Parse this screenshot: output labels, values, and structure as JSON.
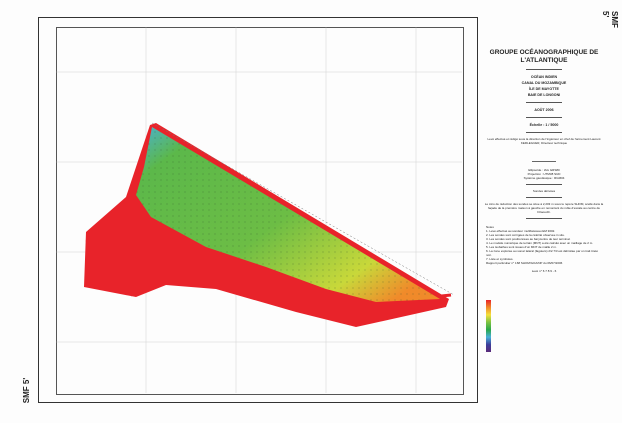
{
  "sheet_id": "SMF 5'",
  "title_block": {
    "organization": "GROUPE OCÉANOGRAPHIQUE DE L'ATLANTIQUE",
    "region_lines": [
      "OCÉAN INDIEN",
      "CANAL DU MOZAMBIQUE",
      "ÎLE DE MAYOTTE",
      "BAIE DE LONGONI"
    ],
    "date": "AOÛT 2006",
    "scale": "Échelle : 1 / 5000",
    "credit": "Levé effectué et rédigé sous la direction de l'ingénieur en chef de l'armement Laurent KERLEGUER, Directeur technique",
    "geodesy": [
      "Ellipsoïde : IAG GRS80",
      "Projection : UTM38 SUD",
      "Système géodésique : RGM04"
    ],
    "soundings": "Sondes dérivées",
    "datum_note": "Le zéro de réduction des sondes se situe à 2,203 m sous le repère SHOM, scellé dans la façade de la première maison à gauche en remontant du môle d'escale au centre de Dzaoudzi.",
    "notes_title": "Notes",
    "notes": [
      "1. Levé effectué au sondeur multifaisceau EM 3002.",
      "2. Les sondes sont corrigées de la célérité observée in situ.",
      "3. Les sondes sont positionnées au barycentre de leur terminal.",
      "4. Le modèle numérique de terrain (MNT) a été calculé avec un maillage de 2 m.",
      "5. Les isobathes sont issues d'un MNT de maille 2 m.",
      "6. La zone explorée au sonar latéral (fagoters) 2/2.7/3 est délimitée par un trait tireté noir.",
      "7. Liste et symboles.",
      "Rapport particulier n° 168 SHOM/GOA/NP du 06/07/2006"
    ],
    "footer_ref": "Levé n° 6 7 8 9 - 6"
  },
  "colors": {
    "shallow": "#e8232a",
    "mid": "#f4e03a",
    "deep": "#2aa84a",
    "deepest": "#48b0d8"
  }
}
